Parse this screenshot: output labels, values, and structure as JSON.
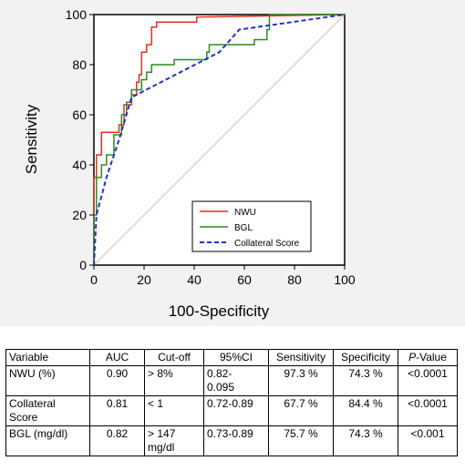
{
  "chart_data": {
    "type": "line",
    "xlabel": "100-Specificity",
    "ylabel": "Sensitivity",
    "xlim": [
      0,
      100
    ],
    "ylim": [
      0,
      100
    ],
    "x_ticks": [
      "0",
      "20",
      "40",
      "60",
      "80",
      "100"
    ],
    "y_ticks": [
      "0",
      "20",
      "40",
      "60",
      "80",
      "100"
    ],
    "legend_position": "bottom-right",
    "reference_line": {
      "x": [
        0,
        100
      ],
      "y": [
        0,
        100
      ],
      "color": "#e8b4b4"
    },
    "series": [
      {
        "name": "NWU",
        "color": "#e03020",
        "style": "solid",
        "points": [
          [
            0,
            0
          ],
          [
            0,
            35
          ],
          [
            1,
            35
          ],
          [
            1,
            44
          ],
          [
            3,
            44
          ],
          [
            3,
            53
          ],
          [
            10,
            53
          ],
          [
            10,
            56
          ],
          [
            12,
            56
          ],
          [
            12,
            64
          ],
          [
            15,
            64
          ],
          [
            15,
            68
          ],
          [
            17,
            68
          ],
          [
            17,
            73
          ],
          [
            18,
            73
          ],
          [
            18,
            76
          ],
          [
            19,
            76
          ],
          [
            19,
            85
          ],
          [
            21,
            85
          ],
          [
            21,
            88
          ],
          [
            23,
            88
          ],
          [
            23,
            95
          ],
          [
            25,
            95
          ],
          [
            25,
            97
          ],
          [
            41,
            97
          ],
          [
            41,
            99
          ],
          [
            100,
            100
          ]
        ]
      },
      {
        "name": "BGL",
        "color": "#2e8b1e",
        "style": "solid",
        "points": [
          [
            0,
            0
          ],
          [
            0,
            20
          ],
          [
            1,
            20
          ],
          [
            1,
            35
          ],
          [
            3,
            35
          ],
          [
            3,
            40
          ],
          [
            5,
            40
          ],
          [
            5,
            44
          ],
          [
            8,
            44
          ],
          [
            8,
            52
          ],
          [
            11,
            52
          ],
          [
            11,
            60
          ],
          [
            13,
            60
          ],
          [
            13,
            65
          ],
          [
            15,
            65
          ],
          [
            15,
            70
          ],
          [
            19,
            70
          ],
          [
            19,
            74
          ],
          [
            21,
            74
          ],
          [
            21,
            77
          ],
          [
            23,
            77
          ],
          [
            23,
            80
          ],
          [
            32,
            80
          ],
          [
            32,
            82
          ],
          [
            45,
            82
          ],
          [
            45,
            85
          ],
          [
            46,
            85
          ],
          [
            46,
            88
          ],
          [
            64,
            88
          ],
          [
            64,
            90
          ],
          [
            69,
            90
          ],
          [
            69,
            94
          ],
          [
            70,
            94
          ],
          [
            70,
            100
          ],
          [
            100,
            100
          ]
        ]
      },
      {
        "name": "Collateral Score",
        "color": "#2233cc",
        "style": "dashed",
        "points": [
          [
            0,
            0
          ],
          [
            1,
            20
          ],
          [
            5,
            35
          ],
          [
            10,
            50
          ],
          [
            15,
            67
          ],
          [
            50,
            85
          ],
          [
            58,
            94
          ],
          [
            100,
            100
          ]
        ]
      }
    ]
  },
  "table": {
    "headers": [
      "Variable",
      "AUC",
      "Cut-off",
      "95%CI",
      "Sensitivity",
      "Specificity",
      "P-Value"
    ],
    "header_p_italic": "P",
    "header_p_rest": "-Value",
    "rows": [
      [
        "NWU (%)",
        "0.90",
        "> 8%",
        "0.82-\n0.095",
        "97.3 %",
        "74.3 %",
        "<0.0001"
      ],
      [
        "Collateral\nScore",
        "0.81",
        "< 1",
        "0.72-0.89",
        "67.7 %",
        "84.4 %",
        "<0.0001"
      ],
      [
        "BGL (mg/dl)",
        "0.82",
        "> 147\nmg/dl",
        "0.73-0.89",
        "75.7 %",
        "74.3 %",
        "<0.001"
      ]
    ]
  }
}
